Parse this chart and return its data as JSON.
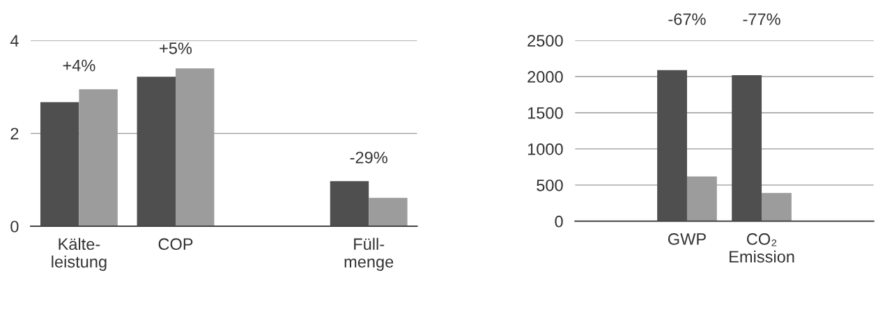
{
  "chart_data": [
    {
      "type": "bar",
      "categories": [
        "Kälte-\nleistung",
        "COP",
        null,
        "Füll-\nmenge"
      ],
      "series": [
        {
          "color": "#4f4f4f",
          "values": [
            2.67,
            3.22,
            null,
            0.97
          ]
        },
        {
          "color": "#9c9c9c",
          "values": [
            2.95,
            3.4,
            null,
            0.61
          ]
        }
      ],
      "ylim": [
        0,
        4
      ],
      "yticks": [
        0,
        2,
        4
      ],
      "grid": "y",
      "legend": false,
      "annotations": [
        "+4%",
        "+5%",
        "-29%"
      ]
    },
    {
      "type": "bar",
      "categories": [
        null,
        "GWP",
        "CO₂\nEmission",
        null
      ],
      "series": [
        {
          "color": "#4f4f4f",
          "values": [
            null,
            2090,
            2020,
            null
          ]
        },
        {
          "color": "#9c9c9c",
          "values": [
            null,
            620,
            390,
            null
          ]
        }
      ],
      "ylim": [
        0,
        2500
      ],
      "yticks": [
        0,
        500,
        1000,
        1500,
        2000,
        2500
      ],
      "grid": "y",
      "legend": false,
      "annotations": [
        "-67%",
        "-77%"
      ]
    }
  ]
}
